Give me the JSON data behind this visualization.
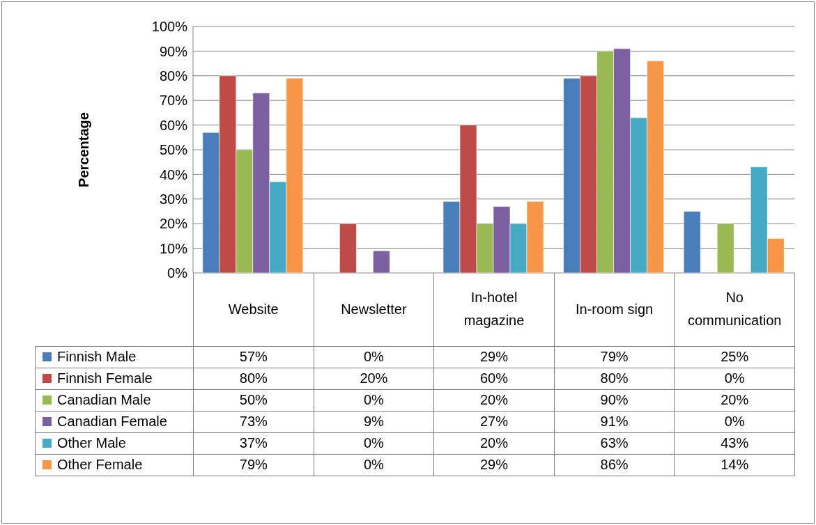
{
  "chart_data": {
    "type": "bar",
    "ylabel": "Percentage",
    "categories": [
      "Website",
      "Newsletter",
      "In-hotel magazine",
      "In-room sign",
      "No communication"
    ],
    "series": [
      {
        "name": "Finnish Male",
        "color": "#4a7ebb",
        "values": [
          57,
          0,
          29,
          79,
          25
        ],
        "value_labels": [
          "57%",
          "0%",
          "29%",
          "79%",
          "25%"
        ]
      },
      {
        "name": "Finnish Female",
        "color": "#be4b48",
        "values": [
          80,
          20,
          60,
          80,
          0
        ],
        "value_labels": [
          "80%",
          "20%",
          "60%",
          "80%",
          "0%"
        ]
      },
      {
        "name": "Canadian Male",
        "color": "#98b954",
        "values": [
          50,
          0,
          20,
          90,
          20
        ],
        "value_labels": [
          "50%",
          "0%",
          "20%",
          "90%",
          "20%"
        ]
      },
      {
        "name": "Canadian Female",
        "color": "#7d60a0",
        "values": [
          73,
          9,
          27,
          91,
          0
        ],
        "value_labels": [
          "73%",
          "9%",
          "27%",
          "91%",
          "0%"
        ]
      },
      {
        "name": "Other Male",
        "color": "#46aac5",
        "values": [
          37,
          0,
          20,
          63,
          43
        ],
        "value_labels": [
          "37%",
          "0%",
          "20%",
          "63%",
          "43%"
        ]
      },
      {
        "name": "Other Female",
        "color": "#f79646",
        "values": [
          79,
          0,
          29,
          86,
          14
        ],
        "value_labels": [
          "79%",
          "0%",
          "29%",
          "86%",
          "14%"
        ]
      }
    ],
    "ylim": [
      0,
      100
    ],
    "yticks": [
      {
        "value": 0,
        "label": "0%"
      },
      {
        "value": 10,
        "label": "10%"
      },
      {
        "value": 20,
        "label": "20%"
      },
      {
        "value": 30,
        "label": "30%"
      },
      {
        "value": 40,
        "label": "40%"
      },
      {
        "value": 50,
        "label": "50%"
      },
      {
        "value": 60,
        "label": "60%"
      },
      {
        "value": 70,
        "label": "70%"
      },
      {
        "value": 80,
        "label": "80%"
      },
      {
        "value": 90,
        "label": "90%"
      },
      {
        "value": 100,
        "label": "100%"
      }
    ],
    "grid": "y",
    "legend": "bottom"
  }
}
